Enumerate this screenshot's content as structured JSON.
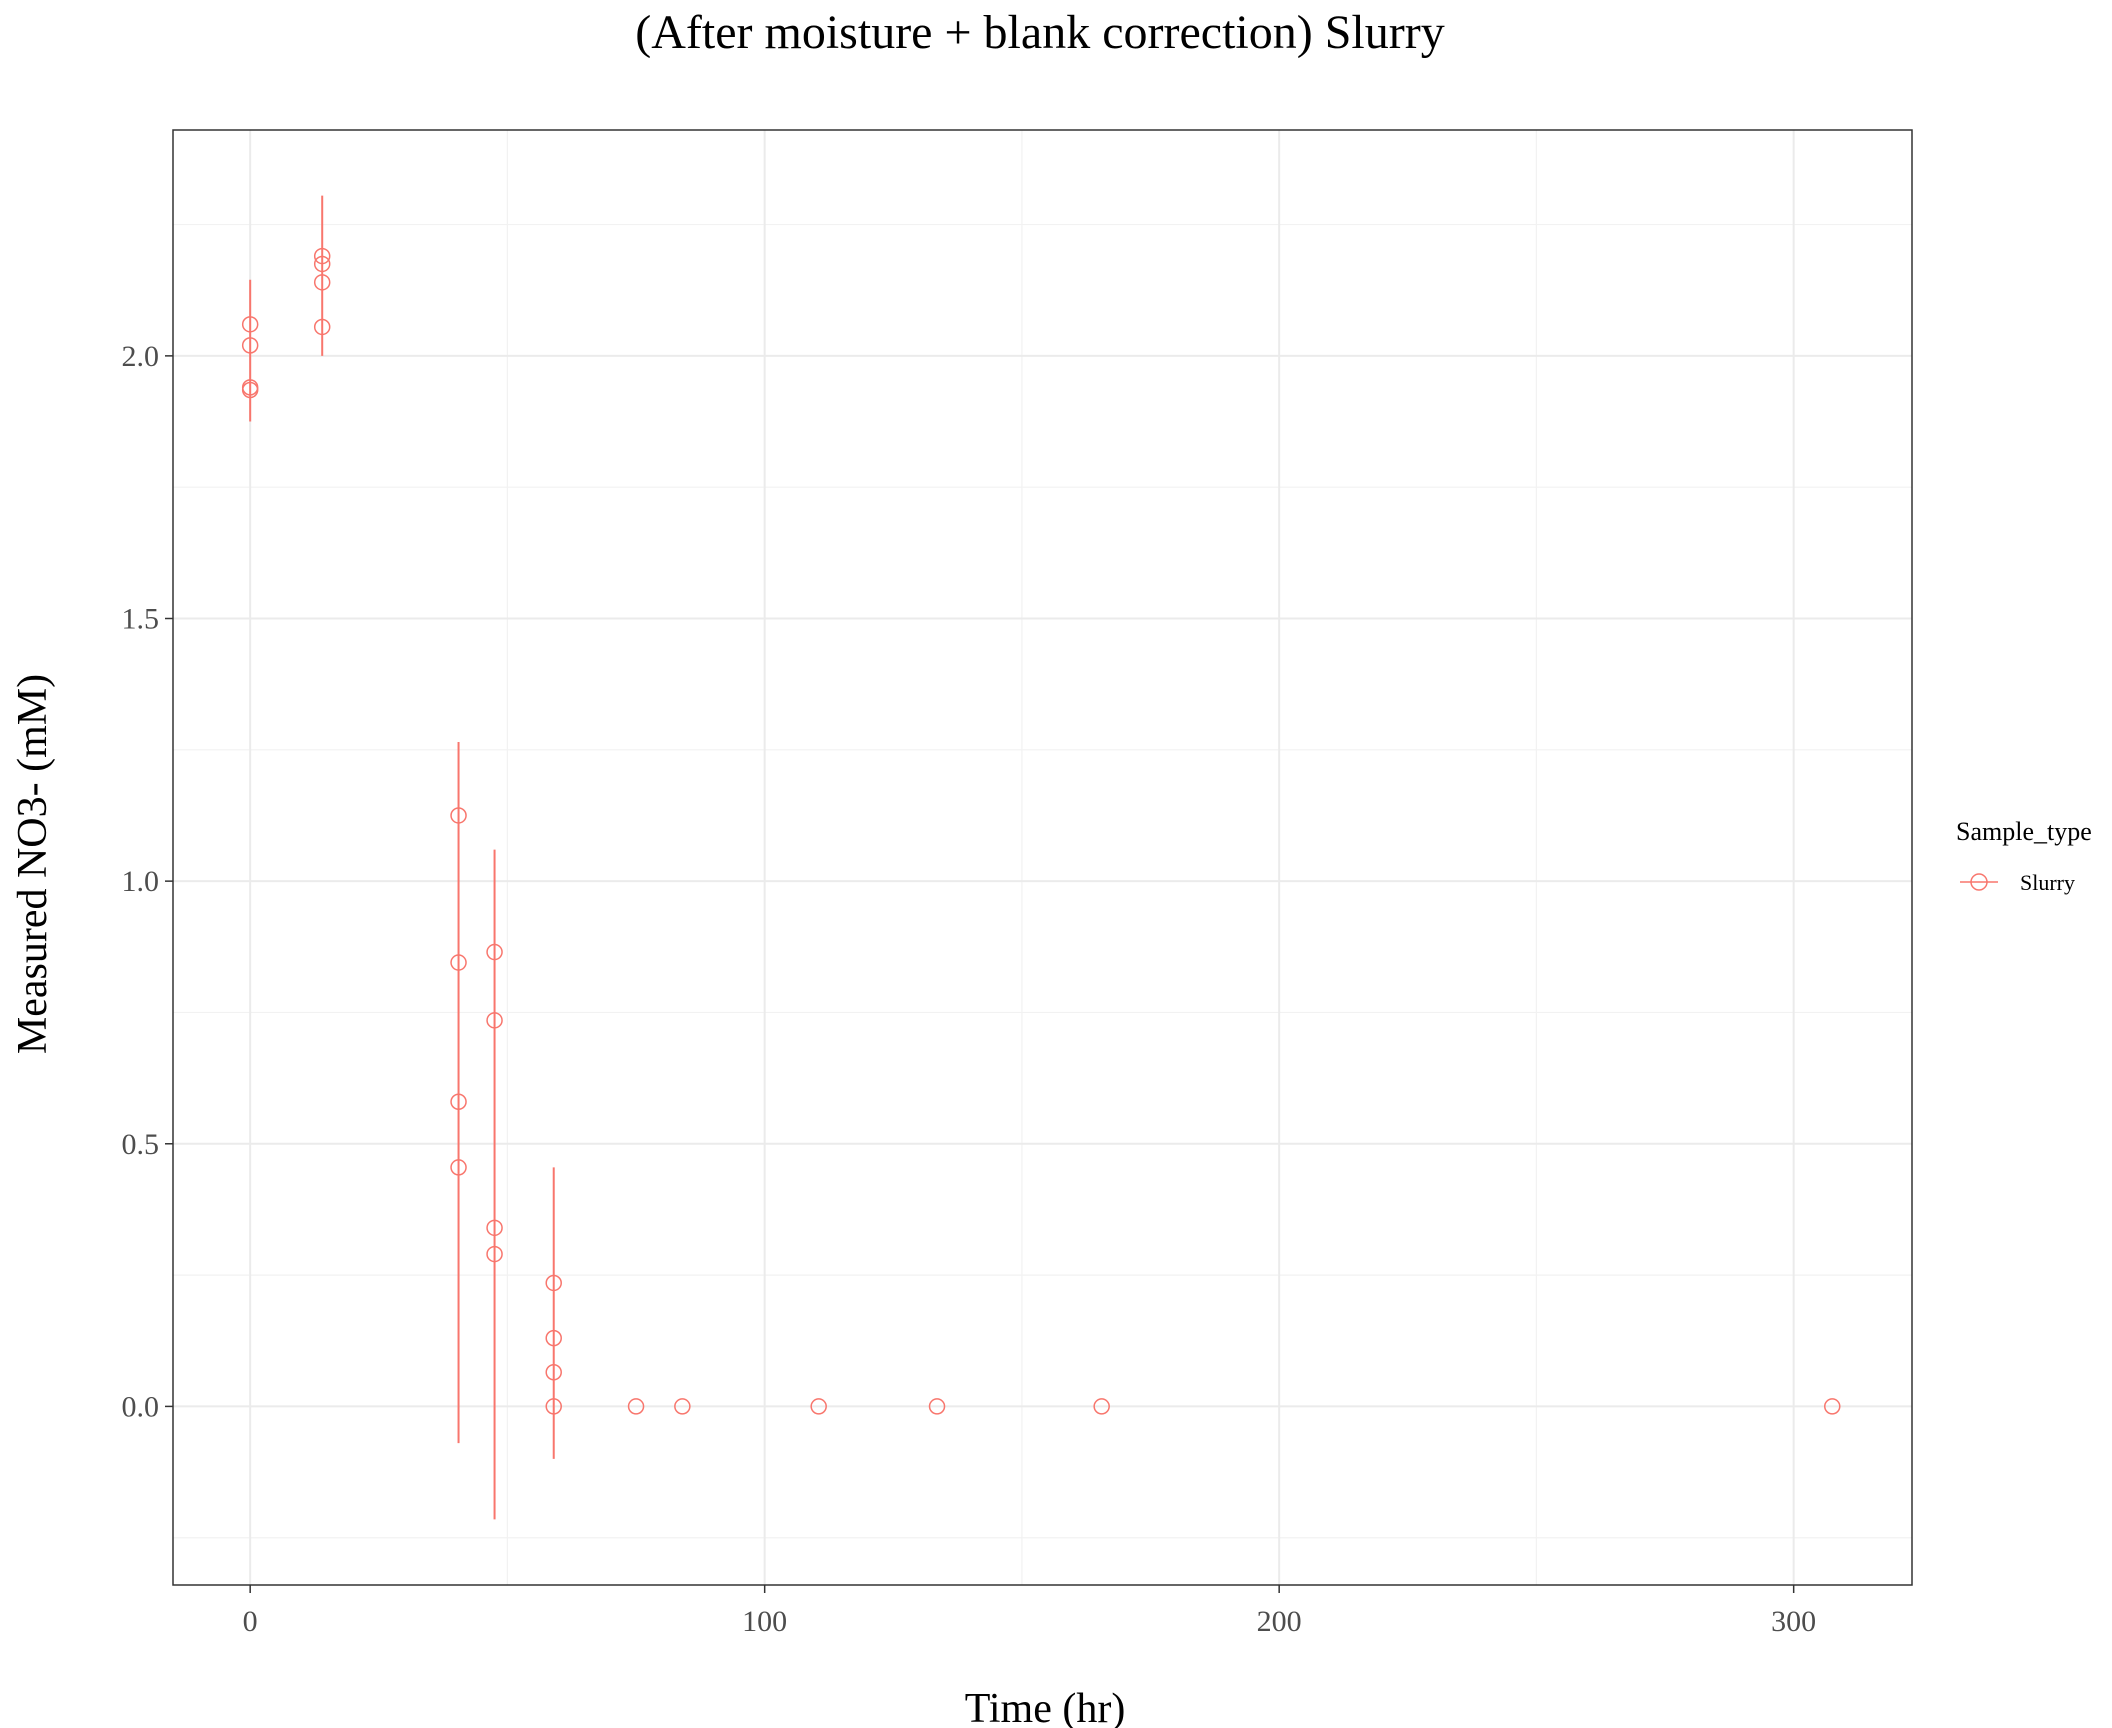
{
  "chart_data": {
    "type": "scatter",
    "title": "(After moisture + blank correction) Slurry",
    "xlabel": "Time (hr)",
    "ylabel": "Measured NO3- (mM)",
    "xlim": [
      -15,
      323
    ],
    "ylim": [
      -0.34,
      2.43
    ],
    "x_ticks": [
      0,
      100,
      200,
      300
    ],
    "y_ticks": [
      0.0,
      0.5,
      1.0,
      1.5,
      2.0
    ],
    "x_tick_labels": [
      "0",
      "100",
      "200",
      "300"
    ],
    "y_tick_labels": [
      "0.0",
      "0.5",
      "1.0",
      "1.5",
      "2.0"
    ],
    "grid": true,
    "legend": {
      "title": "Sample_type",
      "position": "right",
      "entries": [
        "Slurry"
      ]
    },
    "series": [
      {
        "name": "Slurry",
        "color": "#F8766D",
        "marker": "open-circle",
        "points": [
          {
            "x": 0,
            "y": 2.06
          },
          {
            "x": 0,
            "y": 2.02
          },
          {
            "x": 0,
            "y": 1.94
          },
          {
            "x": 0,
            "y": 1.935
          },
          {
            "x": 14,
            "y": 2.19
          },
          {
            "x": 14,
            "y": 2.175
          },
          {
            "x": 14,
            "y": 2.14
          },
          {
            "x": 14,
            "y": 2.055
          },
          {
            "x": 40.5,
            "y": 1.125
          },
          {
            "x": 40.5,
            "y": 0.845
          },
          {
            "x": 40.5,
            "y": 0.58
          },
          {
            "x": 40.5,
            "y": 0.455
          },
          {
            "x": 47.5,
            "y": 0.865
          },
          {
            "x": 47.5,
            "y": 0.735
          },
          {
            "x": 47.5,
            "y": 0.34
          },
          {
            "x": 47.5,
            "y": 0.29
          },
          {
            "x": 59,
            "y": 0.235
          },
          {
            "x": 59,
            "y": 0.13
          },
          {
            "x": 59,
            "y": 0.065
          },
          {
            "x": 59,
            "y": 0.0
          },
          {
            "x": 75,
            "y": 0.0
          },
          {
            "x": 84,
            "y": 0.0
          },
          {
            "x": 110.5,
            "y": 0.0
          },
          {
            "x": 133.5,
            "y": 0.0
          },
          {
            "x": 165.5,
            "y": 0.0
          },
          {
            "x": 307.5,
            "y": 0.0
          }
        ],
        "error_bars": [
          {
            "x": 0,
            "low": 1.875,
            "high": 2.145
          },
          {
            "x": 14,
            "low": 2.0,
            "high": 2.305
          },
          {
            "x": 40.5,
            "low": -0.07,
            "high": 1.265
          },
          {
            "x": 47.5,
            "low": -0.215,
            "high": 1.06
          },
          {
            "x": 59,
            "low": -0.1,
            "high": 0.455
          }
        ]
      }
    ]
  }
}
